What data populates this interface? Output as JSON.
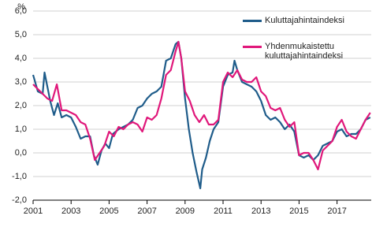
{
  "chart_data": {
    "type": "line",
    "y_unit": "%",
    "xlim": [
      2001,
      2018.8
    ],
    "xticks": [
      2001,
      2003,
      2005,
      2007,
      2009,
      2011,
      2013,
      2015,
      2017
    ],
    "ylim": [
      -2,
      6
    ],
    "yticks": [
      {
        "value": -2,
        "label": "-2,0"
      },
      {
        "value": -1,
        "label": "-1,0"
      },
      {
        "value": 0,
        "label": "0,0"
      },
      {
        "value": 1,
        "label": "1,0"
      },
      {
        "value": 2,
        "label": "2,0"
      },
      {
        "value": 3,
        "label": "3,0"
      },
      {
        "value": 4,
        "label": "4,0"
      },
      {
        "value": 5,
        "label": "5,0"
      },
      {
        "value": 6,
        "label": "6,0"
      }
    ],
    "grid": true,
    "series": [
      {
        "name": "Kuluttajahintaindeksi",
        "color": "#1f5c8a",
        "x": [
          2001.0,
          2001.25,
          2001.5,
          2001.6,
          2001.9,
          2002.1,
          2002.3,
          2002.5,
          2002.75,
          2003.0,
          2003.25,
          2003.5,
          2003.75,
          2004.0,
          2004.2,
          2004.4,
          2004.6,
          2004.8,
          2005.0,
          2005.2,
          2005.5,
          2005.75,
          2006.0,
          2006.25,
          2006.5,
          2006.75,
          2007.0,
          2007.25,
          2007.5,
          2007.75,
          2008.0,
          2008.25,
          2008.5,
          2008.65,
          2008.8,
          2009.0,
          2009.2,
          2009.4,
          2009.6,
          2009.8,
          2009.9,
          2010.1,
          2010.3,
          2010.5,
          2010.75,
          2011.0,
          2011.25,
          2011.5,
          2011.6,
          2011.75,
          2012.0,
          2012.25,
          2012.5,
          2012.75,
          2013.0,
          2013.25,
          2013.5,
          2013.75,
          2014.0,
          2014.25,
          2014.5,
          2014.75,
          2015.0,
          2015.25,
          2015.5,
          2015.75,
          2016.0,
          2016.25,
          2016.5,
          2016.75,
          2017.0,
          2017.25,
          2017.5,
          2017.75,
          2018.0,
          2018.25,
          2018.5,
          2018.75
        ],
        "values": [
          3.3,
          2.6,
          2.5,
          3.4,
          2.2,
          1.6,
          2.1,
          1.5,
          1.6,
          1.5,
          1.1,
          0.6,
          0.7,
          0.7,
          -0.1,
          -0.5,
          0.1,
          0.4,
          0.2,
          0.8,
          1.0,
          1.1,
          1.2,
          1.4,
          1.9,
          2.0,
          2.3,
          2.5,
          2.6,
          2.8,
          3.9,
          4.0,
          4.6,
          4.7,
          4.0,
          2.3,
          1.0,
          0.0,
          -0.8,
          -1.5,
          -0.7,
          -0.2,
          0.5,
          1.0,
          1.3,
          2.8,
          3.3,
          3.4,
          3.9,
          3.5,
          3.0,
          2.9,
          2.8,
          2.6,
          2.2,
          1.6,
          1.4,
          1.5,
          1.3,
          1.0,
          1.2,
          0.9,
          -0.1,
          -0.2,
          -0.1,
          -0.3,
          -0.1,
          0.3,
          0.4,
          0.5,
          0.9,
          1.0,
          0.7,
          0.8,
          0.8,
          1.0,
          1.4,
          1.5
        ]
      },
      {
        "name": "Yhdenmukaistettu\nkuluttajahintaindeksi",
        "color": "#e0177a",
        "x": [
          2001.0,
          2001.25,
          2001.5,
          2001.75,
          2002.0,
          2002.25,
          2002.5,
          2002.75,
          2003.0,
          2003.25,
          2003.5,
          2003.75,
          2004.0,
          2004.25,
          2004.5,
          2004.75,
          2005.0,
          2005.25,
          2005.5,
          2005.75,
          2006.0,
          2006.25,
          2006.5,
          2006.75,
          2007.0,
          2007.25,
          2007.5,
          2007.75,
          2008.0,
          2008.25,
          2008.5,
          2008.65,
          2008.8,
          2009.0,
          2009.25,
          2009.5,
          2009.75,
          2010.0,
          2010.25,
          2010.5,
          2010.75,
          2011.0,
          2011.25,
          2011.5,
          2011.75,
          2012.0,
          2012.25,
          2012.5,
          2012.75,
          2013.0,
          2013.25,
          2013.5,
          2013.75,
          2014.0,
          2014.25,
          2014.5,
          2014.75,
          2015.0,
          2015.25,
          2015.5,
          2015.75,
          2016.0,
          2016.25,
          2016.5,
          2016.75,
          2017.0,
          2017.25,
          2017.5,
          2017.75,
          2018.0,
          2018.25,
          2018.5,
          2018.75
        ],
        "values": [
          2.9,
          2.7,
          2.5,
          2.3,
          2.2,
          2.9,
          1.8,
          1.8,
          1.7,
          1.6,
          1.3,
          1.2,
          0.6,
          -0.3,
          0.0,
          0.3,
          0.9,
          0.7,
          1.1,
          1.0,
          1.2,
          1.3,
          1.2,
          0.9,
          1.5,
          1.4,
          1.6,
          2.3,
          3.3,
          3.5,
          4.3,
          4.7,
          4.0,
          2.6,
          2.2,
          1.6,
          1.3,
          1.6,
          1.2,
          1.2,
          1.4,
          3.0,
          3.4,
          3.2,
          3.5,
          3.1,
          3.0,
          3.0,
          3.2,
          2.6,
          2.4,
          1.9,
          1.8,
          1.9,
          1.4,
          1.1,
          1.3,
          -0.1,
          0.0,
          0.0,
          -0.3,
          -0.7,
          0.1,
          0.3,
          0.5,
          1.1,
          1.4,
          0.9,
          0.7,
          0.6,
          1.0,
          1.4,
          1.7
        ]
      }
    ]
  }
}
